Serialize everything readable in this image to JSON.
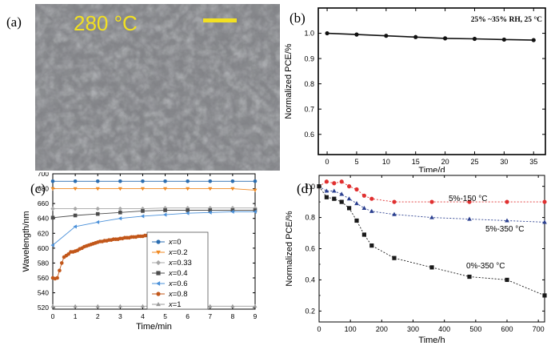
{
  "panel_a": {
    "label": "(a)",
    "temperature": "280 °C",
    "scale_bar_color": "#f2e021",
    "text_color": "#f2e021"
  },
  "chart_data": [
    {
      "id": "b",
      "panel_label": "(b)",
      "type": "line",
      "annotation": "25% ~35% RH, 25 °C",
      "xlabel": "Time/d",
      "ylabel": "Normalized PCE/%",
      "xlim": [
        -1.5,
        37
      ],
      "ylim": [
        0.52,
        1.1
      ],
      "xticks": [
        0,
        5,
        10,
        15,
        20,
        25,
        30,
        35
      ],
      "yticks": [
        0.6,
        0.7,
        0.8,
        0.9,
        1.0
      ],
      "ytick_labels": [
        "0.6",
        "0.7",
        "0.8",
        "0.9",
        "1.0"
      ],
      "series": [
        {
          "x": [
            0,
            5,
            10,
            15,
            20,
            25,
            30,
            35
          ],
          "values": [
            1.0,
            0.995,
            0.99,
            0.985,
            0.98,
            0.978,
            0.975,
            0.973
          ],
          "color": "#111111",
          "marker": "circle"
        }
      ]
    },
    {
      "id": "c",
      "panel_label": "(c)",
      "type": "scatter",
      "xlabel": "Time/min",
      "ylabel": "Wavelength/nm",
      "xlim": [
        0,
        9
      ],
      "ylim": [
        518,
        700
      ],
      "xticks": [
        0,
        1,
        2,
        3,
        4,
        5,
        6,
        7,
        8,
        9
      ],
      "yticks": [
        520,
        540,
        560,
        580,
        600,
        620,
        640,
        660,
        680,
        700
      ],
      "legend_position": "center-right",
      "series": [
        {
          "name": "x=0",
          "color": "#2b6db0",
          "marker": "circle",
          "x": [
            0,
            1,
            2,
            3,
            4,
            5,
            6,
            7,
            8,
            9
          ],
          "values": [
            690,
            690,
            690,
            690,
            690,
            690,
            690,
            690,
            690,
            690
          ]
        },
        {
          "name": "x=0.2",
          "color": "#f08a24",
          "marker": "triangle-down",
          "x": [
            0,
            1,
            2,
            3,
            4,
            5,
            6,
            7,
            8,
            9
          ],
          "values": [
            680,
            680,
            680,
            680,
            680,
            680,
            680,
            680,
            680,
            678
          ]
        },
        {
          "name": "x=0.33",
          "color": "#a8a8a8",
          "marker": "diamond",
          "x": [
            0,
            1,
            2,
            3,
            4,
            5,
            6,
            7,
            8,
            9
          ],
          "values": [
            653,
            653,
            653,
            653,
            653,
            654,
            654,
            654,
            654,
            654
          ]
        },
        {
          "name": "x=0.4",
          "color": "#4d4d4d",
          "marker": "square",
          "x": [
            0,
            1,
            2,
            3,
            4,
            5,
            6,
            7,
            8,
            9
          ],
          "values": [
            641,
            644,
            646,
            648,
            650,
            651,
            651,
            651,
            651,
            651
          ]
        },
        {
          "name": "x=0.6",
          "color": "#4a90d9",
          "marker": "triangle-left",
          "x": [
            0,
            1,
            2,
            3,
            4,
            5,
            6,
            7,
            8,
            9
          ],
          "values": [
            604,
            629,
            635,
            640,
            643,
            645,
            647,
            648,
            649,
            649
          ]
        },
        {
          "name": "x=0.8",
          "color": "#c2571a",
          "marker": "circle",
          "x": [
            0,
            0.1,
            0.2,
            0.3,
            0.4,
            0.5,
            0.6,
            0.7,
            0.8,
            0.9,
            1.0,
            1.1,
            1.2,
            1.3,
            1.4,
            1.5,
            1.6,
            1.7,
            1.8,
            1.9,
            2.0,
            2.1,
            2.2,
            2.3,
            2.4,
            2.5,
            2.6,
            2.7,
            2.8,
            2.9,
            3.0,
            3.1,
            3.2,
            3.3,
            3.4,
            3.5,
            3.6,
            3.7,
            3.8,
            3.9,
            4.0,
            4.1,
            4.2,
            4.3,
            4.4,
            4.5,
            4.6,
            4.7
          ],
          "values": [
            560,
            559,
            560,
            570,
            580,
            588,
            590,
            592,
            595,
            595,
            596,
            597,
            599,
            600,
            602,
            603,
            604,
            605,
            606,
            607,
            608,
            609,
            609,
            610,
            610,
            611,
            611,
            612,
            612,
            612,
            613,
            613,
            614,
            614,
            614,
            615,
            615,
            615,
            616,
            616,
            616,
            617,
            617,
            617,
            618,
            618,
            618,
            619
          ]
        },
        {
          "name": "x=1",
          "color": "#9a9a9a",
          "marker": "triangle-up",
          "x": [
            0,
            1,
            2,
            3,
            4,
            5,
            6,
            7,
            8,
            9
          ],
          "values": [
            522,
            522,
            522,
            522,
            522,
            522,
            522,
            522,
            522,
            522
          ]
        }
      ]
    },
    {
      "id": "d",
      "panel_label": "(d)",
      "type": "line",
      "xlabel": "Time/h",
      "ylabel": "Normalized PCE/%",
      "xlim": [
        0,
        720
      ],
      "ylim": [
        0.13,
        1.07
      ],
      "xticks": [
        0,
        100,
        200,
        300,
        400,
        500,
        600,
        700
      ],
      "yticks": [
        0.2,
        0.4,
        0.6,
        0.8,
        1.0
      ],
      "ytick_labels": [
        "0.2",
        "0.4",
        "0.6",
        "0.8",
        "1.0"
      ],
      "series": [
        {
          "name": "5%-150 °C",
          "color": "#e03030",
          "marker": "circle",
          "x": [
            0,
            24,
            48,
            72,
            96,
            120,
            144,
            168,
            240,
            360,
            480,
            600,
            720
          ],
          "values": [
            1.0,
            1.03,
            1.02,
            1.03,
            1.0,
            0.98,
            0.94,
            0.92,
            0.9,
            0.9,
            0.9,
            0.9,
            0.9
          ]
        },
        {
          "name": "5%-350 °C",
          "color": "#2a3f8f",
          "marker": "triangle-up",
          "x": [
            0,
            24,
            48,
            72,
            96,
            120,
            144,
            168,
            240,
            360,
            480,
            600,
            720
          ],
          "values": [
            1.0,
            0.97,
            0.97,
            0.95,
            0.92,
            0.89,
            0.86,
            0.84,
            0.82,
            0.8,
            0.79,
            0.78,
            0.77
          ]
        },
        {
          "name": "0%-350 °C",
          "color": "#1a1a1a",
          "marker": "square",
          "x": [
            0,
            24,
            48,
            72,
            96,
            120,
            144,
            168,
            240,
            360,
            480,
            600,
            720
          ],
          "values": [
            1.0,
            0.93,
            0.92,
            0.9,
            0.86,
            0.78,
            0.69,
            0.62,
            0.54,
            0.48,
            0.42,
            0.4,
            0.3
          ]
        }
      ]
    }
  ]
}
